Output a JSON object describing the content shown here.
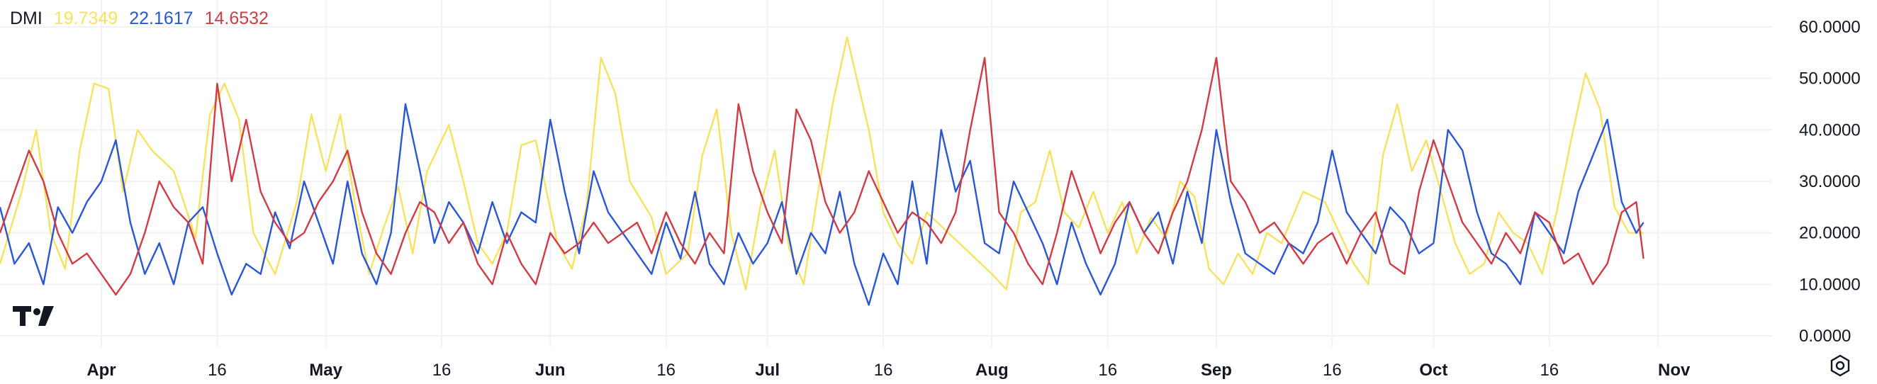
{
  "indicator": {
    "name": "DMI",
    "values": [
      "19.7349",
      "22.1617",
      "14.6532"
    ]
  },
  "colors": {
    "adx": "#f7e25f",
    "plus_di": "#2a56d6",
    "minus_di": "#d03b45",
    "grid": "#f0f2f5",
    "text": "#131722"
  },
  "icons": {
    "logo": "tradingview-logo",
    "settings": "settings-gear-icon"
  },
  "chart_data": {
    "type": "line",
    "x_tick_labels": [
      "Apr",
      "16",
      "May",
      "16",
      "Jun",
      "16",
      "Jul",
      "16",
      "Aug",
      "16",
      "Sep",
      "16",
      "Oct",
      "16",
      "Nov"
    ],
    "x_tick_day": [
      14,
      30,
      45,
      61,
      76,
      92,
      106,
      122,
      137,
      153,
      168,
      184,
      198,
      214,
      229
    ],
    "y_tick_labels": [
      "60.0000",
      "50.0000",
      "40.0000",
      "30.0000",
      "20.0000",
      "10.0000",
      "0.0000"
    ],
    "ylim": [
      0,
      60
    ],
    "xlim": [
      0,
      243
    ],
    "grid": true,
    "series": [
      {
        "color": "#f7e25f",
        "x": [
          0,
          3,
          5,
          7,
          9,
          11,
          13,
          15,
          17,
          19,
          21,
          24,
          27,
          29,
          31,
          33,
          35,
          38,
          41,
          43,
          45,
          47,
          49,
          51,
          53,
          55,
          57,
          59,
          62,
          64,
          66,
          68,
          70,
          72,
          74,
          77,
          79,
          81,
          83,
          85,
          87,
          90,
          92,
          95,
          97,
          99,
          101,
          103,
          105,
          107,
          109,
          111,
          113,
          115,
          117,
          120,
          122,
          124,
          126,
          128,
          131,
          134,
          137,
          139,
          141,
          143,
          145,
          147,
          149,
          151,
          153,
          155,
          157,
          159,
          161,
          163,
          165,
          167,
          169,
          171,
          173,
          175,
          177,
          180,
          183,
          185,
          187,
          189,
          191,
          193,
          195,
          197,
          199,
          201,
          203,
          205,
          207,
          209,
          211,
          213,
          215,
          217,
          219,
          221,
          223,
          225,
          227
        ],
        "y": [
          14,
          28,
          40,
          20,
          13,
          36,
          49,
          48,
          28,
          40,
          36,
          32,
          19,
          43,
          49,
          42,
          20,
          12,
          26,
          43,
          32,
          43,
          26,
          12,
          21,
          29,
          16,
          32,
          41,
          30,
          18,
          14,
          20,
          37,
          38,
          18,
          13,
          25,
          54,
          47,
          30,
          23,
          12,
          16,
          35,
          44,
          20,
          9,
          25,
          36,
          17,
          10,
          28,
          45,
          58,
          40,
          24,
          18,
          14,
          24,
          20,
          16,
          12,
          9,
          24,
          26,
          36,
          24,
          21,
          28,
          20,
          26,
          16,
          23,
          19,
          30,
          27,
          13,
          10,
          16,
          12,
          20,
          18,
          28,
          26,
          20,
          14,
          10,
          35,
          45,
          32,
          38,
          28,
          18,
          12,
          14,
          24,
          20,
          18,
          12,
          24,
          38,
          51,
          44,
          25,
          20,
          20
        ]
      },
      {
        "color": "#2a56d6",
        "x": [
          0,
          2,
          4,
          6,
          8,
          10,
          12,
          14,
          16,
          18,
          20,
          22,
          24,
          26,
          28,
          30,
          32,
          34,
          36,
          38,
          40,
          42,
          44,
          46,
          48,
          50,
          52,
          54,
          56,
          58,
          60,
          62,
          64,
          66,
          68,
          70,
          72,
          74,
          76,
          78,
          80,
          82,
          84,
          86,
          88,
          90,
          92,
          94,
          96,
          98,
          100,
          102,
          104,
          106,
          108,
          110,
          112,
          114,
          116,
          118,
          120,
          122,
          124,
          126,
          128,
          130,
          132,
          134,
          136,
          138,
          140,
          142,
          144,
          146,
          148,
          150,
          152,
          154,
          156,
          158,
          160,
          162,
          164,
          166,
          168,
          170,
          172,
          174,
          176,
          178,
          180,
          182,
          184,
          186,
          188,
          190,
          192,
          194,
          196,
          198,
          200,
          202,
          204,
          206,
          208,
          210,
          212,
          214,
          216,
          218,
          220,
          222,
          224,
          226,
          227
        ],
        "y": [
          25,
          14,
          18,
          10,
          25,
          20,
          26,
          30,
          38,
          22,
          12,
          18,
          10,
          22,
          25,
          16,
          8,
          14,
          12,
          24,
          17,
          30,
          22,
          14,
          30,
          16,
          10,
          20,
          45,
          32,
          18,
          26,
          22,
          16,
          26,
          18,
          24,
          22,
          42,
          28,
          16,
          32,
          24,
          20,
          16,
          12,
          22,
          15,
          28,
          14,
          10,
          20,
          14,
          18,
          26,
          12,
          20,
          16,
          28,
          14,
          6,
          16,
          10,
          30,
          14,
          40,
          28,
          34,
          18,
          16,
          30,
          24,
          18,
          10,
          22,
          14,
          8,
          14,
          26,
          20,
          24,
          14,
          28,
          18,
          40,
          26,
          16,
          14,
          12,
          18,
          16,
          22,
          36,
          24,
          20,
          16,
          25,
          22,
          16,
          18,
          40,
          36,
          24,
          16,
          14,
          10,
          24,
          20,
          16,
          28,
          35,
          42,
          26,
          20,
          22
        ]
      },
      {
        "color": "#d03b45",
        "x": [
          0,
          2,
          4,
          6,
          8,
          10,
          12,
          14,
          16,
          18,
          20,
          22,
          24,
          26,
          28,
          30,
          32,
          34,
          36,
          38,
          40,
          42,
          44,
          46,
          48,
          50,
          52,
          54,
          56,
          58,
          60,
          62,
          64,
          66,
          68,
          70,
          72,
          74,
          76,
          78,
          80,
          82,
          84,
          86,
          88,
          90,
          92,
          94,
          96,
          98,
          100,
          102,
          104,
          106,
          108,
          110,
          112,
          114,
          116,
          118,
          120,
          122,
          124,
          126,
          128,
          130,
          132,
          134,
          136,
          138,
          140,
          142,
          144,
          146,
          148,
          150,
          152,
          154,
          156,
          158,
          160,
          162,
          164,
          166,
          168,
          170,
          172,
          174,
          176,
          178,
          180,
          182,
          184,
          186,
          188,
          190,
          192,
          194,
          196,
          198,
          200,
          202,
          204,
          206,
          208,
          210,
          212,
          214,
          216,
          218,
          220,
          222,
          224,
          226,
          227
        ],
        "y": [
          20,
          28,
          36,
          30,
          20,
          14,
          16,
          12,
          8,
          12,
          20,
          30,
          25,
          22,
          14,
          49,
          30,
          42,
          28,
          22,
          18,
          20,
          26,
          30,
          36,
          24,
          16,
          12,
          20,
          26,
          24,
          18,
          22,
          14,
          10,
          20,
          14,
          10,
          20,
          16,
          18,
          22,
          18,
          20,
          22,
          16,
          24,
          18,
          14,
          20,
          16,
          45,
          32,
          24,
          18,
          44,
          38,
          26,
          20,
          24,
          32,
          26,
          20,
          24,
          22,
          18,
          24,
          40,
          54,
          24,
          20,
          14,
          10,
          20,
          32,
          24,
          16,
          22,
          26,
          20,
          16,
          24,
          30,
          40,
          54,
          30,
          26,
          20,
          22,
          18,
          14,
          18,
          20,
          14,
          20,
          24,
          14,
          12,
          28,
          38,
          30,
          22,
          18,
          14,
          20,
          16,
          24,
          22,
          14,
          16,
          10,
          14,
          24,
          26,
          15
        ]
      }
    ]
  }
}
